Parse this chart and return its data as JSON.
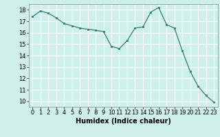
{
  "x": [
    0,
    1,
    2,
    3,
    4,
    5,
    6,
    7,
    8,
    9,
    10,
    11,
    12,
    13,
    14,
    15,
    16,
    17,
    18,
    19,
    20,
    21,
    22,
    23
  ],
  "y": [
    17.4,
    17.9,
    17.7,
    17.3,
    16.8,
    16.6,
    16.4,
    16.3,
    16.2,
    16.1,
    14.8,
    14.6,
    15.3,
    16.4,
    16.5,
    17.8,
    18.2,
    16.7,
    16.4,
    14.4,
    12.6,
    11.3,
    10.5,
    9.9
  ],
  "line_color": "#2e7d6e",
  "marker": "s",
  "marker_size": 2,
  "bg_color": "#cff0ea",
  "grid_color": "#ffffff",
  "xlabel": "Humidex (Indice chaleur)",
  "ylim": [
    9.5,
    18.5
  ],
  "xlim": [
    -0.5,
    23.5
  ],
  "yticks": [
    10,
    11,
    12,
    13,
    14,
    15,
    16,
    17,
    18
  ],
  "xticks": [
    0,
    1,
    2,
    3,
    4,
    5,
    6,
    7,
    8,
    9,
    10,
    11,
    12,
    13,
    14,
    15,
    16,
    17,
    18,
    19,
    20,
    21,
    22,
    23
  ],
  "tick_fontsize": 6,
  "xlabel_fontsize": 7
}
